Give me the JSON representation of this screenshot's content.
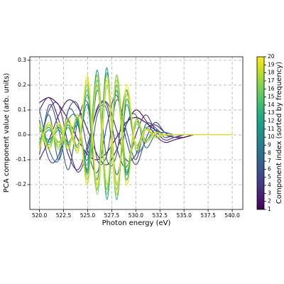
{
  "chart_data": {
    "type": "line",
    "xlabel": "Photon energy (eV)",
    "ylabel": "PCA component value (arb. units)",
    "x": [
      520,
      521,
      522,
      523,
      524,
      525,
      526,
      527,
      528,
      529,
      530,
      531,
      532,
      533,
      534,
      535,
      536,
      537,
      538,
      539,
      540
    ],
    "xlim": [
      519,
      541.1
    ],
    "xticks": [
      {
        "value": 520,
        "label": "520.0"
      },
      {
        "value": 522.5,
        "label": "522.5"
      },
      {
        "value": 525,
        "label": "525.0"
      },
      {
        "value": 527.5,
        "label": "527.5"
      },
      {
        "value": 530,
        "label": "530.0"
      },
      {
        "value": 532.5,
        "label": "532.5"
      },
      {
        "value": 535,
        "label": "535.0"
      },
      {
        "value": 537.5,
        "label": "537.5"
      },
      {
        "value": 540,
        "label": "540.0"
      }
    ],
    "ylim": [
      -0.3,
      0.314
    ],
    "yticks": [
      -0.2,
      -0.1,
      {
        "value": 0,
        "label": "0.0"
      },
      0.1,
      0.2,
      0.3
    ],
    "grid": true,
    "series": [
      {
        "color": "#440154",
        "values": [
          0.13,
          0.15,
          0.12,
          0.06,
          -0.02,
          -0.08,
          -0.1,
          -0.07,
          -0.01,
          0.05,
          0.07,
          0.05,
          0.02,
          0.0,
          -0.01,
          -0.01,
          0.0,
          0.0,
          0.0,
          0.0,
          0.0
        ]
      },
      {
        "color": "#481467",
        "values": [
          -0.1,
          -0.02,
          0.08,
          0.14,
          0.11,
          0.02,
          -0.08,
          -0.12,
          -0.06,
          0.04,
          0.1,
          0.06,
          0.0,
          -0.03,
          -0.02,
          -0.01,
          0.0,
          0.0,
          0.0,
          0.0,
          0.0
        ]
      },
      {
        "color": "#482576",
        "values": [
          0.1,
          0.15,
          0.06,
          -0.08,
          -0.14,
          -0.04,
          0.1,
          0.13,
          0.02,
          -0.1,
          -0.08,
          0.02,
          0.04,
          0.01,
          -0.01,
          0.0,
          0.0,
          0.0,
          0.0,
          0.0,
          0.0
        ]
      },
      {
        "color": "#453781",
        "values": [
          -0.05,
          0.1,
          0.12,
          -0.04,
          -0.15,
          -0.06,
          0.11,
          0.12,
          -0.05,
          -0.13,
          0.0,
          0.08,
          0.02,
          -0.02,
          -0.01,
          0.0,
          0.0,
          0.0,
          0.0,
          0.0,
          0.0
        ]
      },
      {
        "color": "#404688",
        "values": [
          0.06,
          -0.1,
          -0.08,
          0.1,
          0.12,
          -0.06,
          -0.15,
          0.04,
          0.16,
          -0.02,
          -0.12,
          -0.02,
          0.05,
          0.01,
          -0.01,
          0.0,
          0.0,
          0.0,
          0.0,
          0.0,
          0.0
        ]
      },
      {
        "color": "#39558c",
        "values": [
          -0.08,
          0.12,
          0.02,
          -0.14,
          0.06,
          0.13,
          -0.1,
          -0.08,
          0.14,
          0.02,
          -0.1,
          0.04,
          0.03,
          -0.01,
          0.0,
          0.0,
          0.0,
          0.0,
          0.0,
          0.0,
          0.0
        ]
      },
      {
        "color": "#33638d",
        "values": [
          0.1,
          -0.06,
          -0.1,
          0.1,
          0.04,
          -0.14,
          0.08,
          0.1,
          -0.16,
          0.04,
          0.08,
          -0.05,
          0.0,
          0.01,
          0.0,
          0.0,
          0.0,
          0.0,
          0.0,
          0.0,
          0.0
        ]
      },
      {
        "color": "#2d718e",
        "values": [
          -0.04,
          0.08,
          -0.1,
          0.06,
          0.06,
          -0.15,
          0.18,
          -0.1,
          -0.08,
          0.18,
          -0.06,
          -0.03,
          0.02,
          0.0,
          0.0,
          0.0,
          0.0,
          0.0,
          0.0,
          0.0,
          0.0
        ]
      },
      {
        "color": "#287d8e",
        "values": [
          0.02,
          -0.02,
          0.03,
          -0.03,
          0.04,
          -0.1,
          0.2,
          -0.22,
          0.24,
          -0.15,
          0.06,
          -0.03,
          0.01,
          0.0,
          0.0,
          0.0,
          0.0,
          0.0,
          0.0,
          0.0,
          0.0
        ]
      },
      {
        "color": "#238a8d",
        "values": [
          -0.03,
          0.02,
          -0.03,
          0.04,
          -0.05,
          0.12,
          -0.22,
          0.25,
          -0.2,
          0.12,
          -0.05,
          0.02,
          -0.01,
          0.0,
          0.0,
          0.0,
          0.0,
          0.0,
          0.0,
          0.0,
          0.0
        ]
      },
      {
        "color": "#1f968b",
        "values": [
          0.03,
          -0.03,
          0.02,
          -0.04,
          0.05,
          -0.14,
          0.26,
          -0.2,
          0.18,
          -0.16,
          0.05,
          -0.02,
          0.01,
          0.0,
          0.0,
          0.0,
          0.0,
          0.0,
          0.0,
          0.0,
          0.0
        ]
      },
      {
        "color": "#20a386",
        "values": [
          -0.02,
          0.03,
          -0.04,
          0.03,
          -0.06,
          0.16,
          -0.18,
          0.27,
          -0.24,
          0.14,
          -0.04,
          0.03,
          -0.01,
          0.0,
          0.0,
          0.0,
          0.0,
          0.0,
          0.0,
          0.0,
          0.0
        ]
      },
      {
        "color": "#29af7f",
        "values": [
          0.04,
          -0.03,
          0.04,
          -0.05,
          0.06,
          -0.12,
          0.24,
          -0.26,
          0.2,
          -0.18,
          0.06,
          -0.02,
          0.01,
          0.0,
          0.0,
          0.0,
          0.0,
          0.0,
          0.0,
          0.0,
          0.0
        ]
      },
      {
        "color": "#3dbc74",
        "values": [
          -0.03,
          0.04,
          -0.03,
          0.05,
          -0.04,
          0.18,
          -0.2,
          0.22,
          -0.26,
          0.16,
          -0.05,
          0.02,
          0.0,
          0.0,
          0.0,
          0.0,
          0.0,
          0.0,
          0.0,
          0.0,
          0.0
        ]
      },
      {
        "color": "#56c667",
        "values": [
          0.05,
          -0.04,
          0.05,
          -0.04,
          0.07,
          -0.16,
          0.22,
          -0.24,
          0.22,
          -0.14,
          0.04,
          -0.02,
          0.01,
          0.0,
          0.0,
          0.0,
          0.0,
          0.0,
          0.0,
          0.0,
          0.0
        ]
      },
      {
        "color": "#75d054",
        "values": [
          -0.04,
          0.05,
          -0.05,
          0.06,
          -0.06,
          0.2,
          -0.24,
          0.2,
          -0.22,
          0.18,
          -0.06,
          0.03,
          -0.01,
          0.0,
          0.0,
          0.0,
          0.0,
          0.0,
          0.0,
          0.0,
          0.0
        ]
      },
      {
        "color": "#95d840",
        "values": [
          0.05,
          -0.05,
          0.04,
          -0.06,
          0.08,
          -0.18,
          0.2,
          -0.22,
          0.24,
          -0.12,
          0.05,
          -0.02,
          0.01,
          0.0,
          0.0,
          0.0,
          0.0,
          0.0,
          0.0,
          0.0,
          0.0
        ]
      },
      {
        "color": "#bade28",
        "values": [
          -0.05,
          0.04,
          -0.06,
          0.05,
          -0.07,
          0.22,
          -0.22,
          0.24,
          -0.2,
          0.16,
          -0.04,
          0.02,
          -0.01,
          0.0,
          0.0,
          0.0,
          0.0,
          0.0,
          0.0,
          0.0,
          0.0
        ]
      },
      {
        "color": "#dde318",
        "values": [
          0.04,
          -0.06,
          0.05,
          -0.05,
          0.08,
          -0.2,
          0.24,
          -0.2,
          0.22,
          -0.2,
          0.06,
          -0.03,
          0.01,
          0.0,
          0.0,
          0.0,
          0.0,
          0.0,
          0.0,
          0.0,
          0.0
        ]
      },
      {
        "color": "#fde725",
        "values": [
          -0.06,
          0.05,
          -0.04,
          0.07,
          -0.06,
          0.24,
          -0.2,
          0.22,
          -0.24,
          0.2,
          -0.05,
          0.02,
          0.0,
          0.0,
          0.0,
          0.0,
          0.0,
          0.0,
          0.0,
          0.0,
          0.0
        ]
      }
    ],
    "colorbar": {
      "label": "Component index (sorted by frequency)",
      "lim": [
        1,
        20
      ],
      "ticks": [
        1,
        2,
        3,
        4,
        5,
        6,
        7,
        8,
        9,
        10,
        11,
        12,
        13,
        14,
        15,
        16,
        17,
        18,
        19,
        20
      ]
    }
  }
}
